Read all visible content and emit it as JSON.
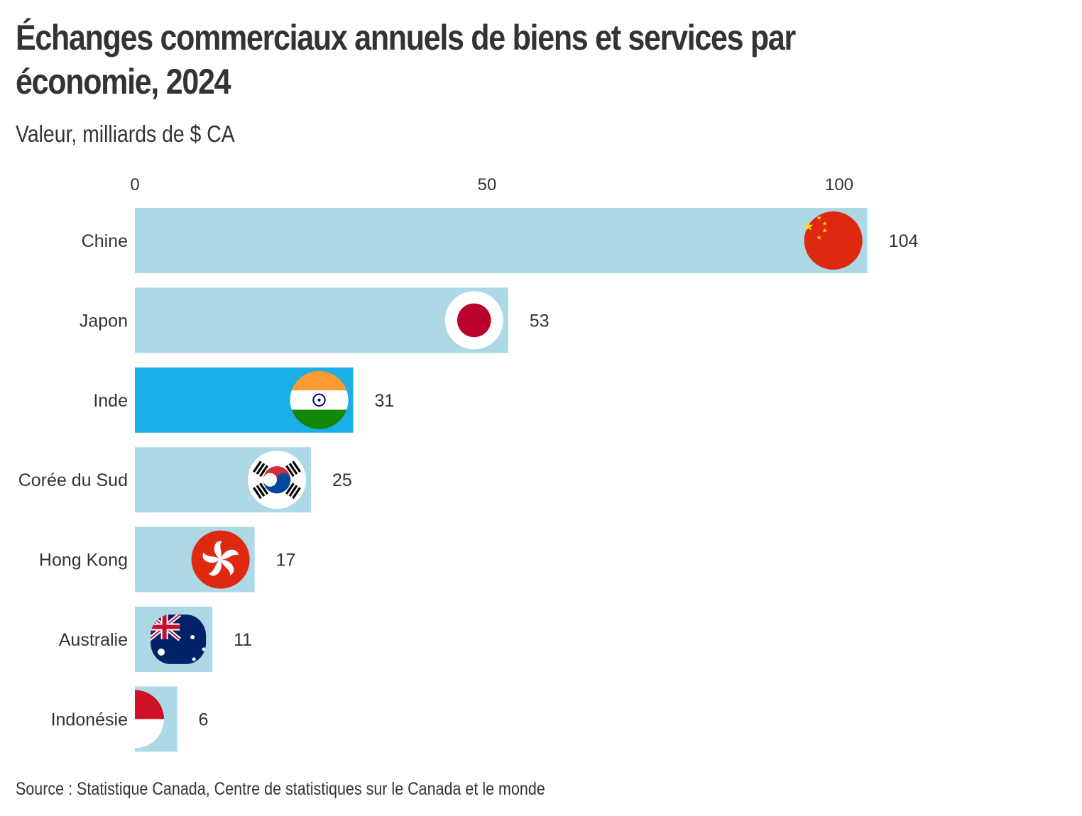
{
  "header": {
    "title": "Échanges commerciaux annuels de biens et services par économie, 2024",
    "subtitle": "Valeur, milliards de $ CA"
  },
  "footer": {
    "source": "Source : Statistique Canada, Centre de statistiques sur le Canada et le monde"
  },
  "chart_data": {
    "type": "bar",
    "orientation": "horizontal",
    "title": "Échanges commerciaux annuels de biens et services par économie, 2024",
    "subtitle": "Valeur, milliards de $ CA",
    "xlabel": "",
    "ylabel": "",
    "xlim": [
      0,
      104
    ],
    "x_ticks": [
      0,
      50,
      100
    ],
    "x_axis_position": "top",
    "grid": false,
    "legend": "none",
    "categories": [
      "Chine",
      "Japon",
      "Inde",
      "Corée du Sud",
      "Hong Kong",
      "Australie",
      "Indonésie"
    ],
    "values": [
      104,
      53,
      31,
      25,
      17,
      11,
      6
    ],
    "data_labels": [
      "104",
      "53",
      "31",
      "25",
      "17",
      "11",
      "6"
    ],
    "flag_icons": [
      "china-flag-icon",
      "japan-flag-icon",
      "india-flag-icon",
      "south-korea-flag-icon",
      "hong-kong-flag-icon",
      "australia-flag-icon",
      "indonesia-flag-icon"
    ],
    "highlighted_category": "Inde",
    "colors": {
      "bar": "#add8e6",
      "bar_highlight": "#1caee6",
      "text": "#333333"
    }
  }
}
